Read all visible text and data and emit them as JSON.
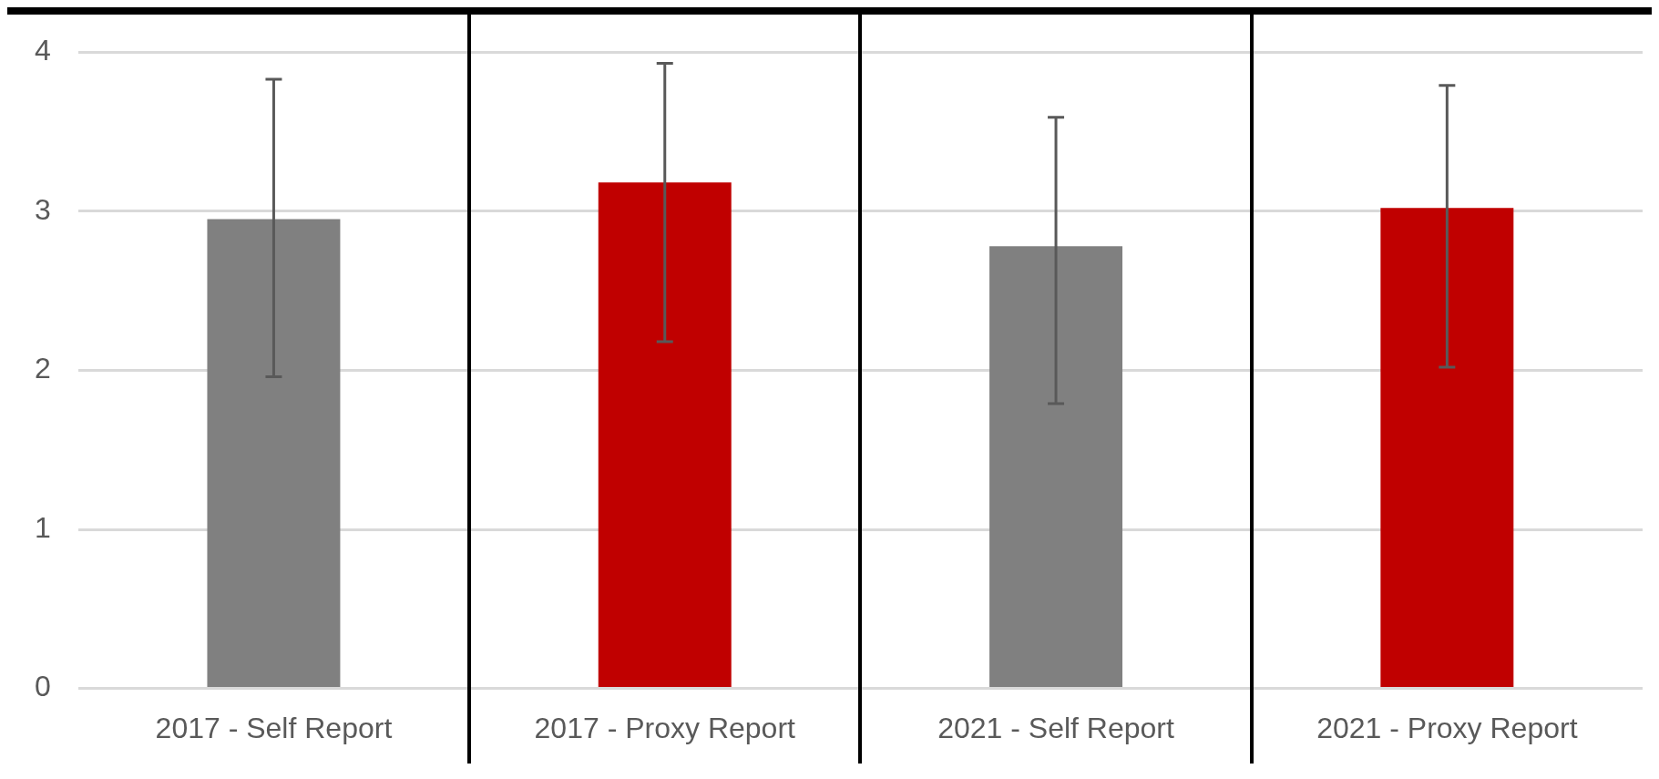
{
  "chart_data": {
    "type": "bar",
    "categories": [
      "2017 - Self Report",
      "2017 - Proxy Report",
      "2021 - Self Report",
      "2021 - Proxy Report"
    ],
    "values": [
      2.95,
      3.18,
      2.78,
      3.02
    ],
    "colors": [
      "#808080",
      "#c00000",
      "#808080",
      "#c00000"
    ],
    "errors": [
      [
        1.96,
        3.83
      ],
      [
        2.18,
        3.93
      ],
      [
        1.79,
        3.59
      ],
      [
        2.02,
        3.79
      ]
    ],
    "ylim": [
      0,
      4
    ],
    "yticks": [
      0,
      1,
      2,
      3,
      4
    ],
    "grid": "y"
  }
}
